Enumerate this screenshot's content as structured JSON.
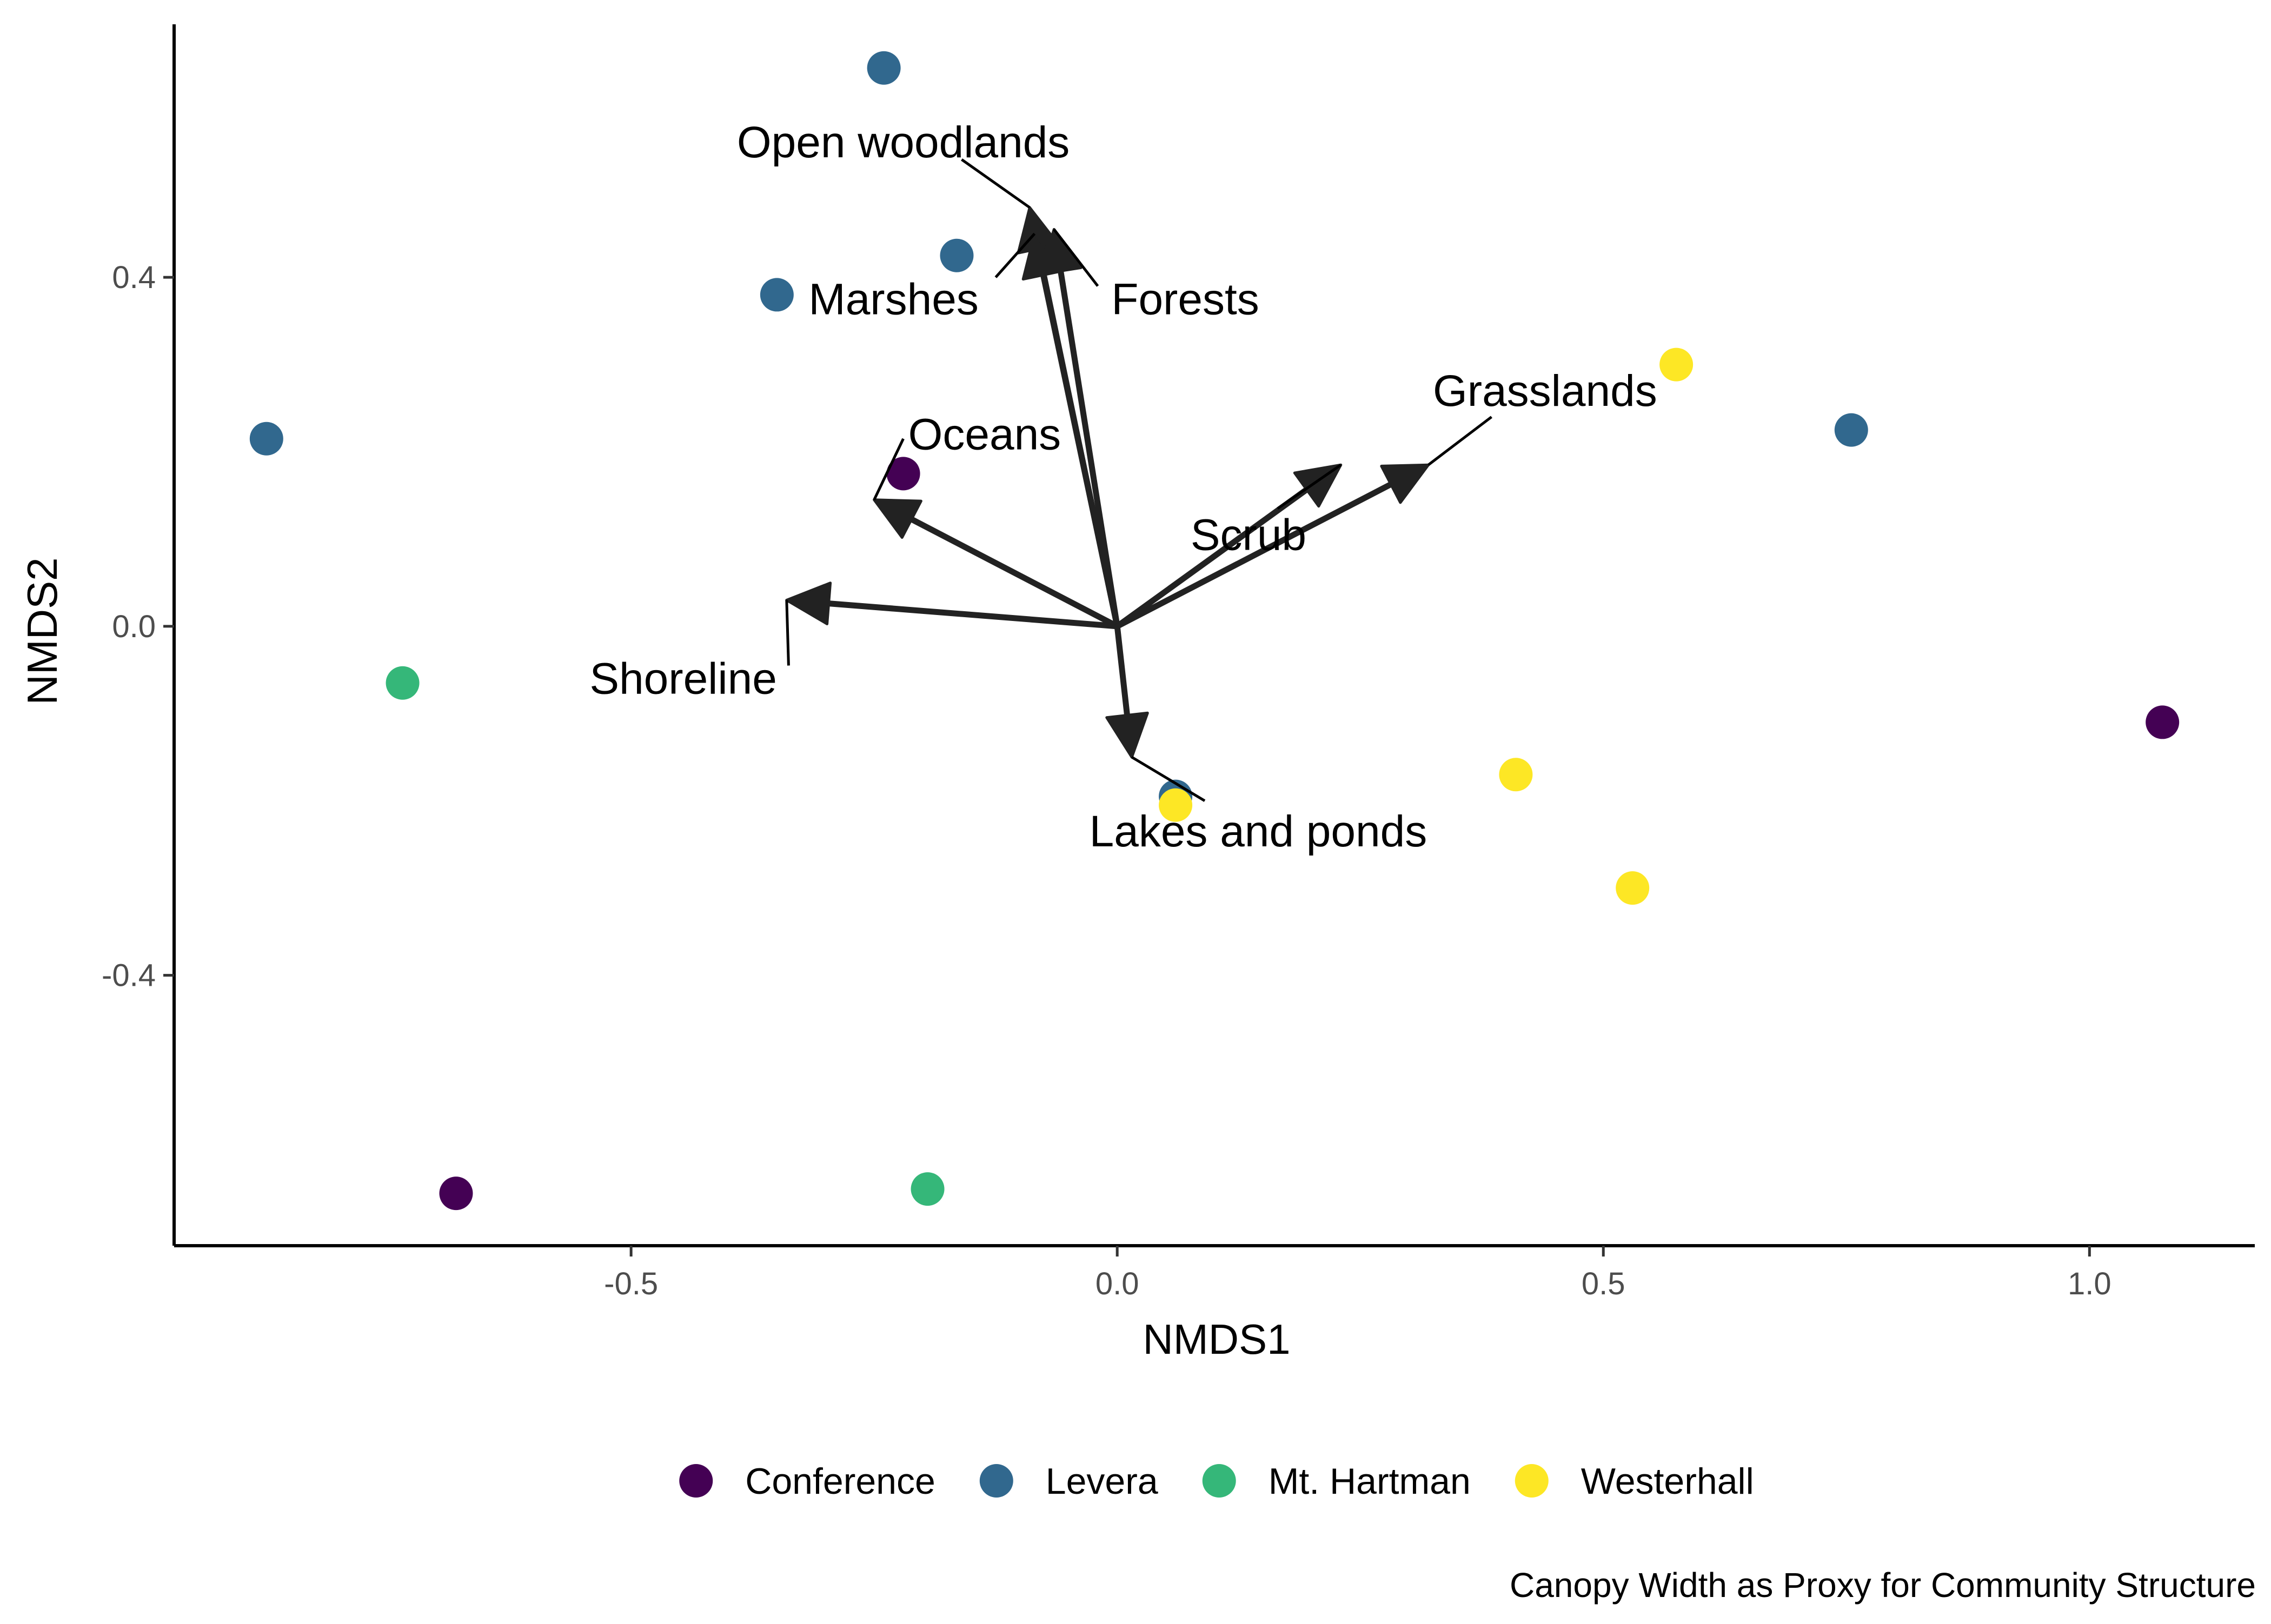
{
  "chart_data": {
    "type": "scatter",
    "subtype": "nmds-biplot",
    "xlabel": "NMDS1",
    "ylabel": "NMDS2",
    "caption": "Canopy Width as Proxy for Community Structure",
    "xlim": [
      -0.97,
      1.17
    ],
    "ylim": [
      -0.71,
      0.69
    ],
    "x_ticks": [
      -0.5,
      0.0,
      0.5,
      1.0
    ],
    "x_tick_labels": [
      "-0.5",
      "0.0",
      "0.5",
      "1.0"
    ],
    "y_ticks": [
      -0.4,
      0.0,
      0.4
    ],
    "y_tick_labels": [
      "-0.4",
      "0.0",
      "0.4"
    ],
    "grid": false,
    "legend_position": "bottom",
    "series": [
      {
        "name": "Conference",
        "color": "#440154",
        "points": [
          [
            -0.22,
            0.175
          ],
          [
            1.075,
            -0.11
          ],
          [
            -0.68,
            -0.65
          ]
        ]
      },
      {
        "name": "Levera",
        "color": "#31688E",
        "points": [
          [
            -0.24,
            0.64
          ],
          [
            -0.165,
            0.425
          ],
          [
            -0.35,
            0.38
          ],
          [
            -0.875,
            0.215
          ],
          [
            0.755,
            0.225
          ],
          [
            0.06,
            -0.195
          ]
        ]
      },
      {
        "name": "Mt. Hartman",
        "color": "#35B779",
        "points": [
          [
            -0.735,
            -0.065
          ],
          [
            -0.195,
            -0.645
          ]
        ]
      },
      {
        "name": "Westerhall",
        "color": "#FDE725",
        "points": [
          [
            0.575,
            0.3
          ],
          [
            0.41,
            -0.17
          ],
          [
            0.53,
            -0.3
          ],
          [
            0.06,
            -0.205
          ]
        ]
      }
    ],
    "vectors": [
      {
        "name": "Open woodlands",
        "x": -0.09,
        "y": 0.48,
        "label_x": -0.22,
        "label_y": 0.555,
        "label_anchor": "middle",
        "leader": [
          [
            -0.16,
            0.535
          ],
          [
            -0.09,
            0.48
          ]
        ]
      },
      {
        "name": "Marshes",
        "x": -0.085,
        "y": 0.45,
        "label_x": -0.23,
        "label_y": 0.375,
        "label_anchor": "middle",
        "leader": [
          [
            -0.125,
            0.4
          ],
          [
            -0.085,
            0.45
          ]
        ]
      },
      {
        "name": "Forests",
        "x": -0.065,
        "y": 0.455,
        "label_x": 0.07,
        "label_y": 0.375,
        "label_anchor": "middle",
        "leader": [
          [
            -0.02,
            0.39
          ],
          [
            -0.065,
            0.455
          ]
        ]
      },
      {
        "name": "Oceans",
        "x": -0.25,
        "y": 0.145,
        "label_x": -0.215,
        "label_y": 0.22,
        "label_anchor": "start",
        "leader": [
          [
            -0.22,
            0.215
          ],
          [
            -0.25,
            0.145
          ]
        ]
      },
      {
        "name": "Shoreline",
        "x": -0.34,
        "y": 0.03,
        "label_x": -0.35,
        "label_y": -0.06,
        "label_anchor": "end",
        "leader": [
          [
            -0.338,
            -0.045
          ],
          [
            -0.34,
            0.03
          ]
        ]
      },
      {
        "name": "Grasslands",
        "x": 0.32,
        "y": 0.185,
        "label_x": 0.44,
        "label_y": 0.27,
        "label_anchor": "middle",
        "leader": [
          [
            0.385,
            0.24
          ],
          [
            0.32,
            0.185
          ]
        ]
      },
      {
        "name": "Scrub",
        "x": 0.23,
        "y": 0.185,
        "label_x": 0.135,
        "label_y": 0.105,
        "label_anchor": "middle",
        "leader": [
          [
            0.165,
            0.135
          ],
          [
            0.23,
            0.185
          ]
        ]
      },
      {
        "name": "Lakes and ponds",
        "x": 0.015,
        "y": -0.15,
        "label_x": 0.145,
        "label_y": -0.235,
        "label_anchor": "middle",
        "leader": [
          [
            0.09,
            -0.2
          ],
          [
            0.015,
            -0.15
          ]
        ]
      }
    ],
    "arrow_color": "#222222"
  }
}
